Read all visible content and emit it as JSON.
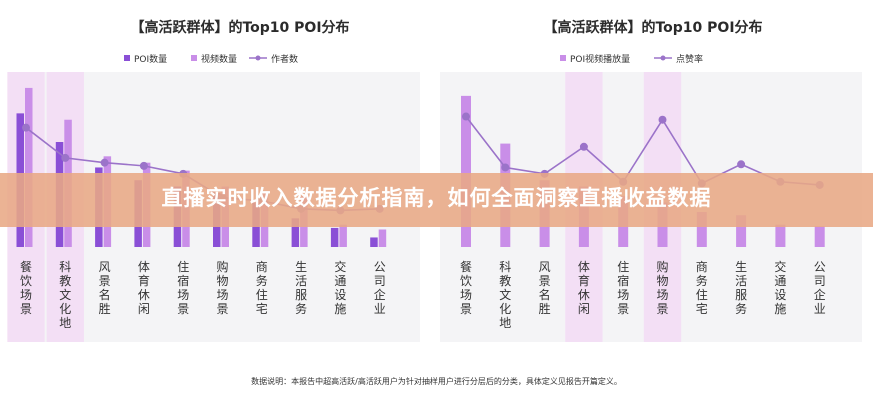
{
  "colors": {
    "bar_primary": "#8a4fd6",
    "bar_secondary": "#c98ee8",
    "line": "#9b73c9",
    "highlight": "#f3dff5",
    "banner": "#e8a985",
    "panel": "#f4f4f6"
  },
  "banner": {
    "text": "直播实时收入数据分析指南，如何全面洞察直播收益数据"
  },
  "footnote": "数据说明：本报告中超高活跃/高活跃用户为针对抽样用户进行分层后的分类，具体定义见报告开篇定义。",
  "chart_data": [
    {
      "type": "bar",
      "title": "【高活跃群体】的Top10 POI分布",
      "categories": [
        "餐饮场景",
        "科教文化地",
        "风景名胜",
        "体育休闲",
        "住宿场景",
        "购物场景",
        "商务住宅",
        "生活服务",
        "交通设施",
        "公司企业"
      ],
      "highlighted_categories": [
        "餐饮场景",
        "科教文化地"
      ],
      "series": [
        {
          "name": "POI数量",
          "kind": "bar",
          "values": [
            84,
            66,
            50,
            42,
            38,
            34,
            28,
            18,
            12,
            6
          ]
        },
        {
          "name": "视频数量",
          "kind": "bar",
          "values": [
            100,
            80,
            57,
            53,
            48,
            38,
            35,
            32,
            14,
            11
          ]
        },
        {
          "name": "作者数",
          "kind": "line",
          "values": [
            75,
            56,
            53,
            51,
            46,
            31,
            29,
            24,
            23,
            24
          ]
        }
      ],
      "ylim": [
        0,
        110
      ],
      "grid": false,
      "legend_position": "top-left"
    },
    {
      "type": "bar",
      "title": "【高活跃群体】的Top10 POI分布",
      "categories": [
        "餐饮场景",
        "科教文化地",
        "风景名胜",
        "体育休闲",
        "住宿场景",
        "购物场景",
        "商务住宅",
        "生活服务",
        "交通设施",
        "公司企业"
      ],
      "highlighted_categories": [
        "体育休闲",
        "购物场景"
      ],
      "series": [
        {
          "name": "POI视频播放量",
          "kind": "bar",
          "values": [
            95,
            65,
            42,
            38,
            32,
            28,
            22,
            20,
            14,
            13
          ]
        },
        {
          "name": "点赞率",
          "kind": "line",
          "values": [
            82,
            50,
            46,
            63,
            41,
            80,
            40,
            52,
            41,
            39
          ]
        }
      ],
      "ylim": [
        0,
        110
      ],
      "grid": false,
      "legend_position": "top-left"
    }
  ]
}
